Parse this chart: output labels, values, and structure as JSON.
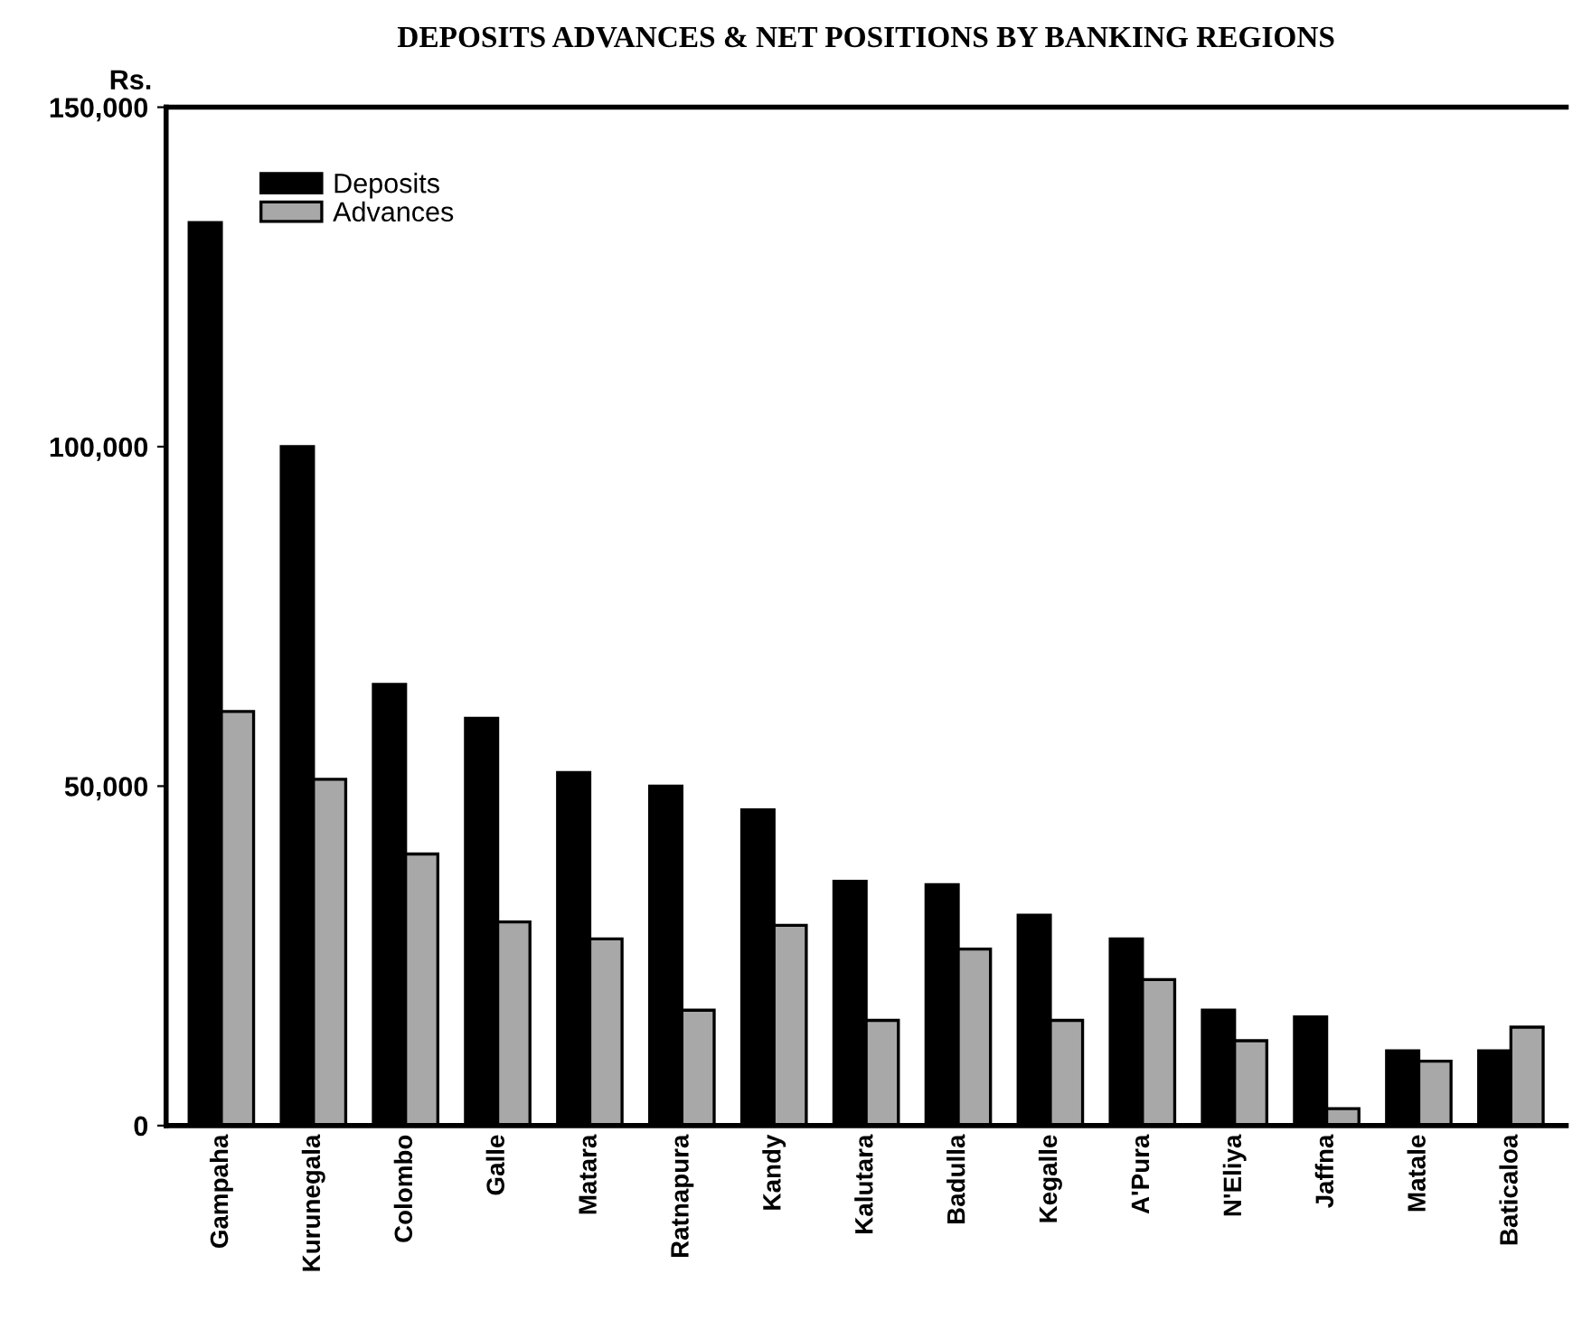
{
  "chart_data": {
    "type": "bar",
    "title": "DEPOSITS ADVANCES & NET POSITIONS BY BANKING REGIONS",
    "ylabel": "Rs.",
    "categories": [
      "Gampaha",
      "Kurunegala",
      "Colombo",
      "Galle",
      "Matara",
      "Ratnapura",
      "Kandy",
      "Kalutara",
      "Badulla",
      "Kegalle",
      "A'Pura",
      "N'Eliya",
      "Jaffna",
      "Matale",
      "Baticaloa"
    ],
    "series": [
      {
        "name": "Deposits",
        "color": "#000000",
        "values": [
          133000,
          100000,
          65000,
          60000,
          52000,
          50000,
          46500,
          36000,
          35500,
          31000,
          27500,
          17000,
          16000,
          11000,
          11000
        ]
      },
      {
        "name": "Advances",
        "color": "#a8a8a8",
        "values": [
          61000,
          51000,
          40000,
          30000,
          27500,
          17000,
          29500,
          15500,
          26000,
          15500,
          21500,
          12500,
          2500,
          9500,
          14500
        ]
      }
    ],
    "ylim": [
      0,
      150000
    ],
    "yticks": [
      {
        "value": 0,
        "label": "0"
      },
      {
        "value": 50000,
        "label": "50,000"
      },
      {
        "value": 100000,
        "label": "100,000"
      },
      {
        "value": 150000,
        "label": "150,000"
      }
    ],
    "grid": false,
    "legend": "top left"
  }
}
